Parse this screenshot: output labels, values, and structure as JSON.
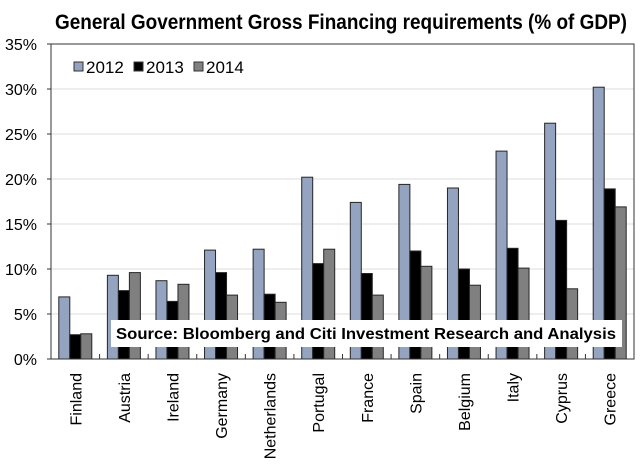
{
  "chart_data": {
    "type": "bar",
    "title": "General Government Gross Financing requirements (% of GDP)",
    "xlabel": "",
    "ylabel": "",
    "ylim": [
      0,
      35
    ],
    "yticks": [
      0,
      5,
      10,
      15,
      20,
      25,
      30,
      35
    ],
    "ytick_labels": [
      "0%",
      "5%",
      "10%",
      "15%",
      "20%",
      "25%",
      "30%",
      "35%"
    ],
    "grid": true,
    "legend_position": "top-left",
    "categories": [
      "Finland",
      "Austria",
      "Ireland",
      "Germany",
      "Netherlands",
      "Portugal",
      "France",
      "Spain",
      "Belgium",
      "Italy",
      "Cyprus",
      "Greece"
    ],
    "series": [
      {
        "name": "2012",
        "color": "#94a3bf",
        "values": [
          6.9,
          9.3,
          8.7,
          12.1,
          12.2,
          20.2,
          17.4,
          19.4,
          19.0,
          23.1,
          26.2,
          30.2
        ]
      },
      {
        "name": "2013",
        "color": "#000000",
        "values": [
          2.7,
          7.6,
          6.4,
          9.6,
          7.2,
          10.6,
          9.5,
          12.0,
          10.0,
          12.3,
          15.4,
          18.9
        ]
      },
      {
        "name": "2014",
        "color": "#808080",
        "values": [
          2.8,
          9.6,
          8.3,
          7.1,
          6.3,
          12.2,
          7.1,
          10.3,
          8.2,
          10.1,
          7.8,
          16.9
        ]
      }
    ],
    "annotations": [
      "Source: Bloomberg and Citi Investment Research and Analysis"
    ]
  }
}
